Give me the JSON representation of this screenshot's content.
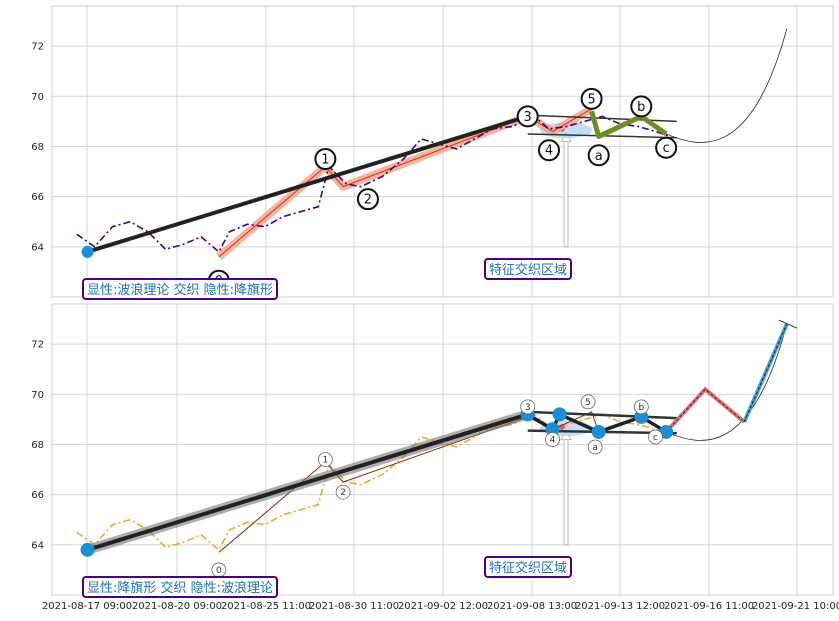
{
  "chart_data": [
    {
      "type": "line",
      "panel": "top",
      "ylim": [
        62.0,
        73.6
      ],
      "yticks": [
        64,
        66,
        68,
        70,
        72
      ],
      "grid": true,
      "legend_text": "显性:波浪理论 交织 隐性:降旗形",
      "zone_label": "特征交织区域",
      "price_series": [
        {
          "x": 0.0,
          "y": 64.5
        },
        {
          "x": 0.5,
          "y": 64.0
        },
        {
          "x": 1.0,
          "y": 64.8
        },
        {
          "x": 1.5,
          "y": 65.0
        },
        {
          "x": 2.0,
          "y": 64.6
        },
        {
          "x": 2.5,
          "y": 63.9
        },
        {
          "x": 3.0,
          "y": 64.1
        },
        {
          "x": 3.5,
          "y": 64.4
        },
        {
          "x": 4.0,
          "y": 63.8
        },
        {
          "x": 4.3,
          "y": 64.6
        },
        {
          "x": 4.8,
          "y": 64.9
        },
        {
          "x": 5.3,
          "y": 64.8
        },
        {
          "x": 5.8,
          "y": 65.2
        },
        {
          "x": 6.3,
          "y": 65.4
        },
        {
          "x": 6.8,
          "y": 65.6
        },
        {
          "x": 7.1,
          "y": 67.2
        },
        {
          "x": 7.6,
          "y": 66.5
        },
        {
          "x": 8.0,
          "y": 66.4
        },
        {
          "x": 8.6,
          "y": 66.8
        },
        {
          "x": 9.2,
          "y": 67.5
        },
        {
          "x": 9.7,
          "y": 68.3
        },
        {
          "x": 10.2,
          "y": 68.1
        },
        {
          "x": 10.7,
          "y": 67.9
        },
        {
          "x": 11.2,
          "y": 68.3
        },
        {
          "x": 11.7,
          "y": 68.7
        },
        {
          "x": 12.3,
          "y": 68.8
        },
        {
          "x": 12.8,
          "y": 69.3
        },
        {
          "x": 13.3,
          "y": 68.7
        },
        {
          "x": 13.8,
          "y": 68.8
        },
        {
          "x": 14.3,
          "y": 69.0
        },
        {
          "x": 14.8,
          "y": 69.2
        },
        {
          "x": 15.3,
          "y": 68.9
        },
        {
          "x": 15.8,
          "y": 68.8
        },
        {
          "x": 16.3,
          "y": 68.6
        },
        {
          "x": 16.7,
          "y": 68.4
        }
      ],
      "wave_points": [
        {
          "label": "0",
          "x": 4.0,
          "y": 63.6
        },
        {
          "label": "1",
          "x": 7.0,
          "y": 67.2
        },
        {
          "label": "2",
          "x": 7.5,
          "y": 66.4
        },
        {
          "label": "3",
          "x": 12.7,
          "y": 69.2
        },
        {
          "label": "4",
          "x": 13.4,
          "y": 68.6
        },
        {
          "label": "5",
          "x": 14.5,
          "y": 69.5
        },
        {
          "label": "a",
          "x": 14.7,
          "y": 68.4
        },
        {
          "label": "b",
          "x": 15.9,
          "y": 69.2
        },
        {
          "label": "c",
          "x": 16.6,
          "y": 68.5
        }
      ],
      "trend_start": {
        "x": 0.3,
        "y": 63.8
      },
      "projection_end": {
        "x": 20.0,
        "y": 72.7
      }
    },
    {
      "type": "line",
      "panel": "bottom",
      "ylim": [
        62.0,
        73.6
      ],
      "yticks": [
        64,
        66,
        68,
        70,
        72
      ],
      "grid": true,
      "legend_text": "显性:降旗形 交织 隐性:波浪理论",
      "zone_label": "特征交织区域",
      "x_tick_labels": [
        "2021-08-17 09:00",
        "2021-08-20 09:00",
        "2021-08-25 11:00",
        "2021-08-30 11:00",
        "2021-09-02 12:00",
        "2021-09-08 13:00",
        "2021-09-13 12:00",
        "2021-09-16 11:00",
        "2021-09-21 10:00"
      ],
      "flag_points": [
        {
          "x": 0.3,
          "y": 63.8
        },
        {
          "x": 12.7,
          "y": 69.2
        },
        {
          "x": 13.4,
          "y": 68.6
        },
        {
          "x": 13.6,
          "y": 69.2
        },
        {
          "x": 14.7,
          "y": 68.5
        },
        {
          "x": 15.9,
          "y": 69.1
        },
        {
          "x": 16.6,
          "y": 68.5
        }
      ],
      "projection_zigzag": [
        {
          "x": 16.6,
          "y": 68.5
        },
        {
          "x": 17.7,
          "y": 70.2
        },
        {
          "x": 18.8,
          "y": 68.9
        },
        {
          "x": 20.0,
          "y": 72.8
        }
      ],
      "small_labels": [
        "0",
        "1",
        "2",
        "3",
        "4",
        "5",
        "a",
        "b",
        "c"
      ]
    }
  ]
}
